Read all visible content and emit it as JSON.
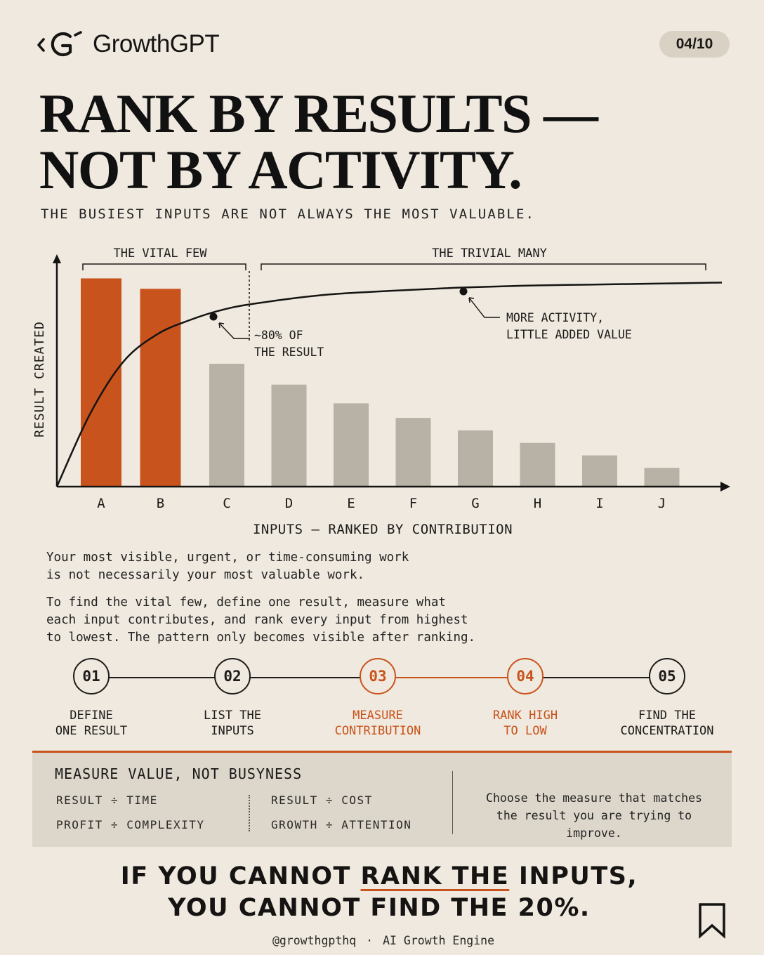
{
  "brand": {
    "name": "GrowthGPT",
    "page": "04/10"
  },
  "headline": {
    "line1": "RANK BY RESULTS —",
    "line2": "NOT BY ACTIVITY."
  },
  "subhead": "THE BUSIEST INPUTS ARE NOT ALWAYS THE MOST VALUABLE.",
  "chart_data": {
    "type": "bar",
    "categories": [
      "A",
      "B",
      "C",
      "D",
      "E",
      "F",
      "G",
      "H",
      "I",
      "J"
    ],
    "values": [
      100,
      95,
      59,
      49,
      40,
      33,
      27,
      21,
      15,
      9
    ],
    "highlight": [
      "A",
      "B"
    ],
    "curve": {
      "x": [
        0,
        0.5,
        1,
        1.5,
        2,
        2.5,
        3,
        4,
        5,
        6,
        7,
        8,
        9,
        10
      ],
      "y": [
        0,
        35,
        60,
        73,
        80,
        85,
        88,
        92,
        94,
        95.5,
        96.5,
        97,
        97.5,
        98
      ],
      "markers": [
        {
          "x": 2,
          "y": 80,
          "label": [
            "~80% OF",
            "THE RESULT"
          ]
        },
        {
          "x": 5.4,
          "y": 94.5,
          "label": [
            "MORE ACTIVITY,",
            "LITTLE ADDED VALUE"
          ]
        }
      ]
    },
    "groups": [
      {
        "label": "THE VITAL FEW",
        "from": "A",
        "to": "B"
      },
      {
        "label": "THE TRIVIAL MANY",
        "from": "C",
        "to": "J"
      }
    ],
    "xlabel": "INPUTS — RANKED BY CONTRIBUTION",
    "ylabel": "RESULT CREATED",
    "ylim": [
      0,
      105
    ],
    "grid": false,
    "colors": {
      "highlight": "#c9531c",
      "other": "#b8b1a5",
      "curve": "#151412"
    }
  },
  "paragraphs": [
    "Your most visible, urgent, or time-consuming work\nis not necessarily your most valuable work.",
    "To find the vital few, define one result, measure what\neach input contributes, and rank every input from highest\nto lowest. The pattern only becomes visible after ranking."
  ],
  "steps": [
    {
      "num": "01",
      "label": "DEFINE\nONE RESULT",
      "accent": false
    },
    {
      "num": "02",
      "label": "LIST THE\nINPUTS",
      "accent": false
    },
    {
      "num": "03",
      "label": "MEASURE\nCONTRIBUTION",
      "accent": true
    },
    {
      "num": "04",
      "label": "RANK HIGH\nTO LOW",
      "accent": true
    },
    {
      "num": "05",
      "label": "FIND THE\nCONCENTRATION",
      "accent": false
    }
  ],
  "measure": {
    "title": "MEASURE VALUE, NOT BUSYNESS",
    "ratios": [
      "RESULT ÷ TIME",
      "PROFIT ÷ COMPLEXITY",
      "RESULT ÷ COST",
      "GROWTH ÷ ATTENTION"
    ],
    "note": "Choose the measure that matches\nthe result you are trying to improve."
  },
  "closing": {
    "line1_pre": "IF YOU CANNOT ",
    "line1_highlight": "RANK THE",
    "line1_post": " INPUTS,",
    "line2": "YOU CANNOT FIND THE 20%."
  },
  "footer": {
    "handle": "@growthgpthq",
    "separator": "·",
    "tagline": "AI Growth Engine"
  },
  "icons": {
    "logo": "growthgpt-logo-icon",
    "bookmark": "bookmark-icon"
  },
  "accent_color": "#c9531c"
}
